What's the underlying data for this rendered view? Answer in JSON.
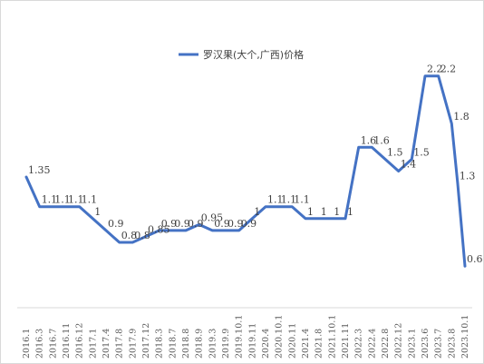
{
  "chart_data": {
    "type": "line",
    "title": "",
    "xlabel": "",
    "ylabel": "",
    "ylim": [
      0.25,
      2.45
    ],
    "grid": false,
    "legend_position": "top",
    "line_color": "#4472C4",
    "categories": [
      "2016.1",
      "2016.3",
      "2016.7",
      "2016.11",
      "2016.12",
      "2017.1",
      "2017.4",
      "2017.8",
      "2017.9",
      "2017.12",
      "2018.3",
      "2018.7",
      "2018.8",
      "2018.9",
      "2019.3",
      "2019.9",
      "2019.10.1",
      "2019.11",
      "2020.4",
      "2020.10.1",
      "2020.11",
      "2021.4",
      "2021.8",
      "2021.10.1",
      "2021.11",
      "2022.3",
      "2022.4",
      "2022.8",
      "2022.12",
      "2023.1",
      "2023.6",
      "2023.7",
      "2023.8",
      "2023.10.1"
    ],
    "series": [
      {
        "name": "罗汉果(大个,广西)价格",
        "values": [
          1.35,
          1.1,
          1.1,
          1.1,
          1.1,
          1.0,
          0.9,
          0.8,
          0.8,
          0.85,
          0.9,
          0.9,
          0.9,
          0.95,
          0.9,
          0.9,
          0.9,
          1.0,
          1.1,
          1.1,
          1.1,
          1.0,
          1.0,
          1.0,
          1.0,
          1.6,
          1.6,
          1.5,
          1.4,
          1.5,
          2.2,
          2.2,
          1.8,
          1.3
        ],
        "data_labels": [
          "1.35",
          "1.1",
          "1.1",
          "1.1",
          "1.1",
          "1",
          "0.9",
          "0.8",
          "0.8",
          "0.85",
          "0.9",
          "0.9",
          "0.9",
          "0.95",
          "0.9",
          "0.9",
          "0.9",
          "1",
          "1.1",
          "1.1",
          "1.1",
          "1",
          "1",
          "1",
          "1",
          "1.6",
          "1.6",
          "1.5",
          "1.4",
          "1.5",
          "2.2",
          "2.2",
          "1.8",
          "1.3"
        ]
      }
    ],
    "final_point": {
      "value": 0.6,
      "label": "0.6"
    }
  }
}
